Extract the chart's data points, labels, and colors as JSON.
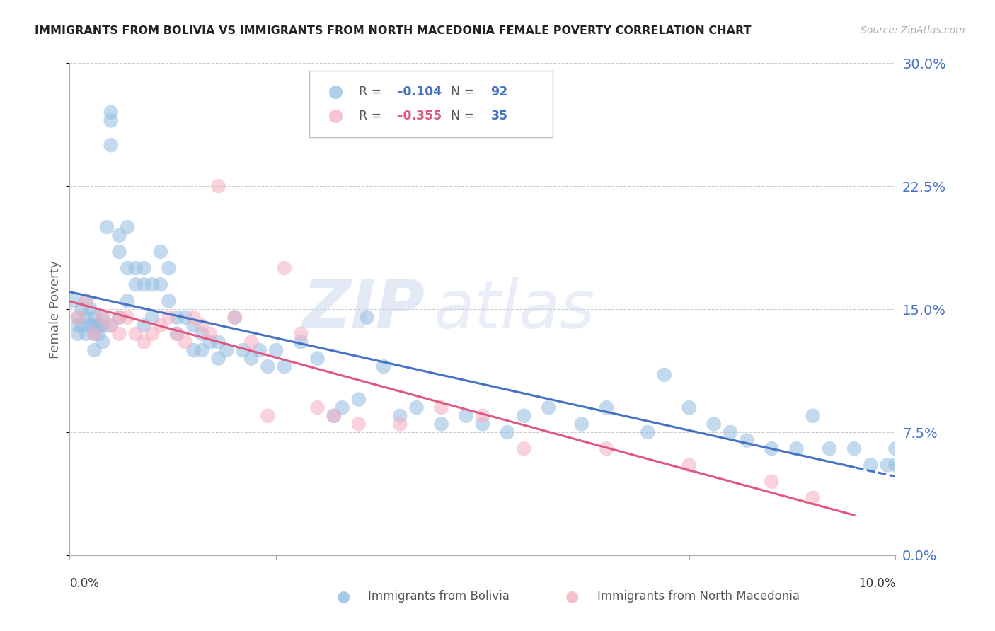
{
  "title": "IMMIGRANTS FROM BOLIVIA VS IMMIGRANTS FROM NORTH MACEDONIA FEMALE POVERTY CORRELATION CHART",
  "source": "Source: ZipAtlas.com",
  "ylabel": "Female Poverty",
  "ytick_labels": [
    "0.0%",
    "7.5%",
    "15.0%",
    "22.5%",
    "30.0%"
  ],
  "ytick_values": [
    0.0,
    0.075,
    0.15,
    0.225,
    0.3
  ],
  "xlim": [
    0.0,
    0.1
  ],
  "ylim": [
    0.0,
    0.3
  ],
  "bolivia_R": -0.104,
  "bolivia_N": 92,
  "macedonia_R": -0.355,
  "macedonia_N": 35,
  "bolivia_color": "#92bde0",
  "macedonia_color": "#f5aec0",
  "trend_bolivia_color": "#4472c4",
  "trend_macedonia_color": "#e05880",
  "bolivia_label": "Immigrants from Bolivia",
  "macedonia_label": "Immigrants from North Macedonia",
  "watermark_zip": "ZIP",
  "watermark_atlas": "atlas",
  "bolivia_x": [
    0.0005,
    0.001,
    0.001,
    0.001,
    0.0015,
    0.0015,
    0.002,
    0.002,
    0.002,
    0.0025,
    0.0025,
    0.003,
    0.003,
    0.003,
    0.003,
    0.0035,
    0.0035,
    0.004,
    0.004,
    0.004,
    0.0045,
    0.005,
    0.005,
    0.005,
    0.005,
    0.006,
    0.006,
    0.006,
    0.007,
    0.007,
    0.007,
    0.008,
    0.008,
    0.009,
    0.009,
    0.009,
    0.01,
    0.01,
    0.011,
    0.011,
    0.012,
    0.012,
    0.013,
    0.013,
    0.014,
    0.015,
    0.015,
    0.016,
    0.016,
    0.017,
    0.018,
    0.018,
    0.019,
    0.02,
    0.021,
    0.022,
    0.023,
    0.024,
    0.025,
    0.026,
    0.028,
    0.03,
    0.032,
    0.033,
    0.035,
    0.036,
    0.038,
    0.04,
    0.042,
    0.045,
    0.048,
    0.05,
    0.053,
    0.055,
    0.058,
    0.062,
    0.065,
    0.07,
    0.072,
    0.075,
    0.078,
    0.08,
    0.082,
    0.085,
    0.088,
    0.09,
    0.092,
    0.095,
    0.097,
    0.099,
    0.1,
    0.1
  ],
  "bolivia_y": [
    0.155,
    0.145,
    0.14,
    0.135,
    0.15,
    0.14,
    0.155,
    0.145,
    0.135,
    0.15,
    0.14,
    0.145,
    0.14,
    0.135,
    0.125,
    0.14,
    0.135,
    0.145,
    0.14,
    0.13,
    0.2,
    0.265,
    0.27,
    0.25,
    0.14,
    0.195,
    0.185,
    0.145,
    0.2,
    0.175,
    0.155,
    0.175,
    0.165,
    0.175,
    0.165,
    0.14,
    0.165,
    0.145,
    0.185,
    0.165,
    0.175,
    0.155,
    0.145,
    0.135,
    0.145,
    0.14,
    0.125,
    0.135,
    0.125,
    0.13,
    0.13,
    0.12,
    0.125,
    0.145,
    0.125,
    0.12,
    0.125,
    0.115,
    0.125,
    0.115,
    0.13,
    0.12,
    0.085,
    0.09,
    0.095,
    0.145,
    0.115,
    0.085,
    0.09,
    0.08,
    0.085,
    0.08,
    0.075,
    0.085,
    0.09,
    0.08,
    0.09,
    0.075,
    0.11,
    0.09,
    0.08,
    0.075,
    0.07,
    0.065,
    0.065,
    0.085,
    0.065,
    0.065,
    0.055,
    0.055,
    0.065,
    0.055
  ],
  "macedonia_x": [
    0.001,
    0.002,
    0.003,
    0.004,
    0.005,
    0.006,
    0.006,
    0.007,
    0.008,
    0.009,
    0.01,
    0.011,
    0.012,
    0.013,
    0.014,
    0.015,
    0.016,
    0.017,
    0.018,
    0.02,
    0.022,
    0.024,
    0.026,
    0.028,
    0.03,
    0.032,
    0.035,
    0.04,
    0.045,
    0.05,
    0.055,
    0.065,
    0.075,
    0.085,
    0.09
  ],
  "macedonia_y": [
    0.145,
    0.155,
    0.135,
    0.145,
    0.14,
    0.145,
    0.135,
    0.145,
    0.135,
    0.13,
    0.135,
    0.14,
    0.145,
    0.135,
    0.13,
    0.145,
    0.14,
    0.135,
    0.225,
    0.145,
    0.13,
    0.085,
    0.175,
    0.135,
    0.09,
    0.085,
    0.08,
    0.08,
    0.09,
    0.085,
    0.065,
    0.065,
    0.055,
    0.045,
    0.035
  ]
}
